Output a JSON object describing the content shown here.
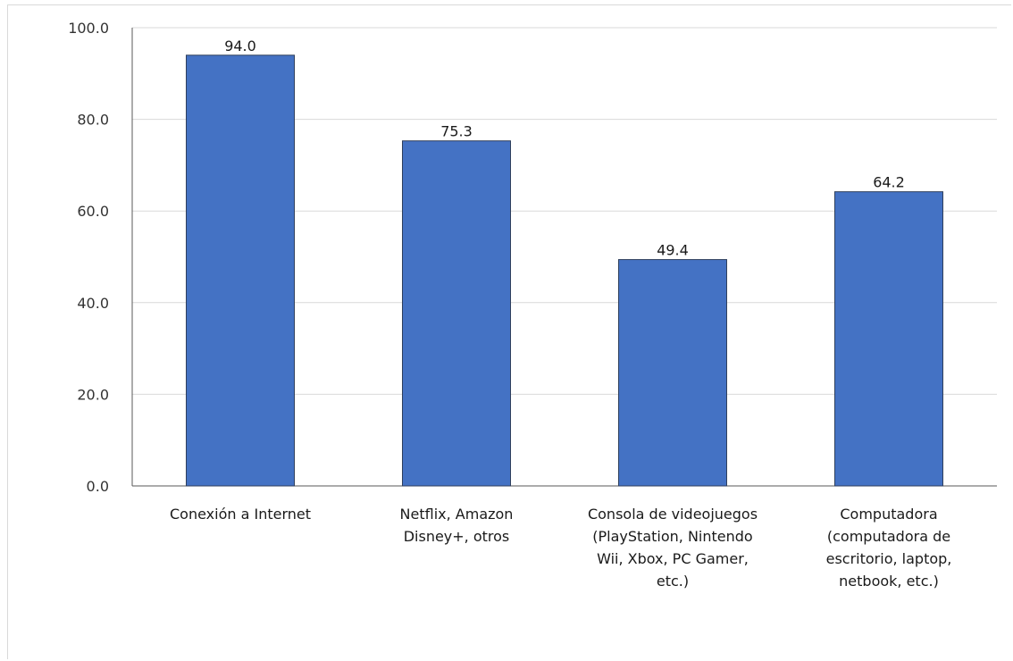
{
  "chart_data": {
    "type": "bar",
    "categories": [
      [
        "Conexión a Internet"
      ],
      [
        "Netflix, Amazon",
        "Disney+, otros"
      ],
      [
        "Consola de videojuegos",
        "(PlayStation, Nintendo",
        "Wii, Xbox, PC Gamer,",
        "etc.)"
      ],
      [
        "Computadora",
        "(computadora de",
        "escritorio, laptop,",
        "netbook, etc.)"
      ]
    ],
    "values": [
      94.0,
      75.3,
      49.4,
      64.2
    ],
    "data_labels": [
      "94.0",
      "75.3",
      "49.4",
      "64.2"
    ],
    "ylim": [
      0,
      100
    ],
    "yticks": [
      "0.0",
      "20.0",
      "40.0",
      "60.0",
      "80.0",
      "100.0"
    ],
    "grid": true,
    "colors": {
      "bar": "#4472c4",
      "bar_edge": "#2f3f5c",
      "grid": "#d9d9d9",
      "axis": "#595959"
    }
  }
}
